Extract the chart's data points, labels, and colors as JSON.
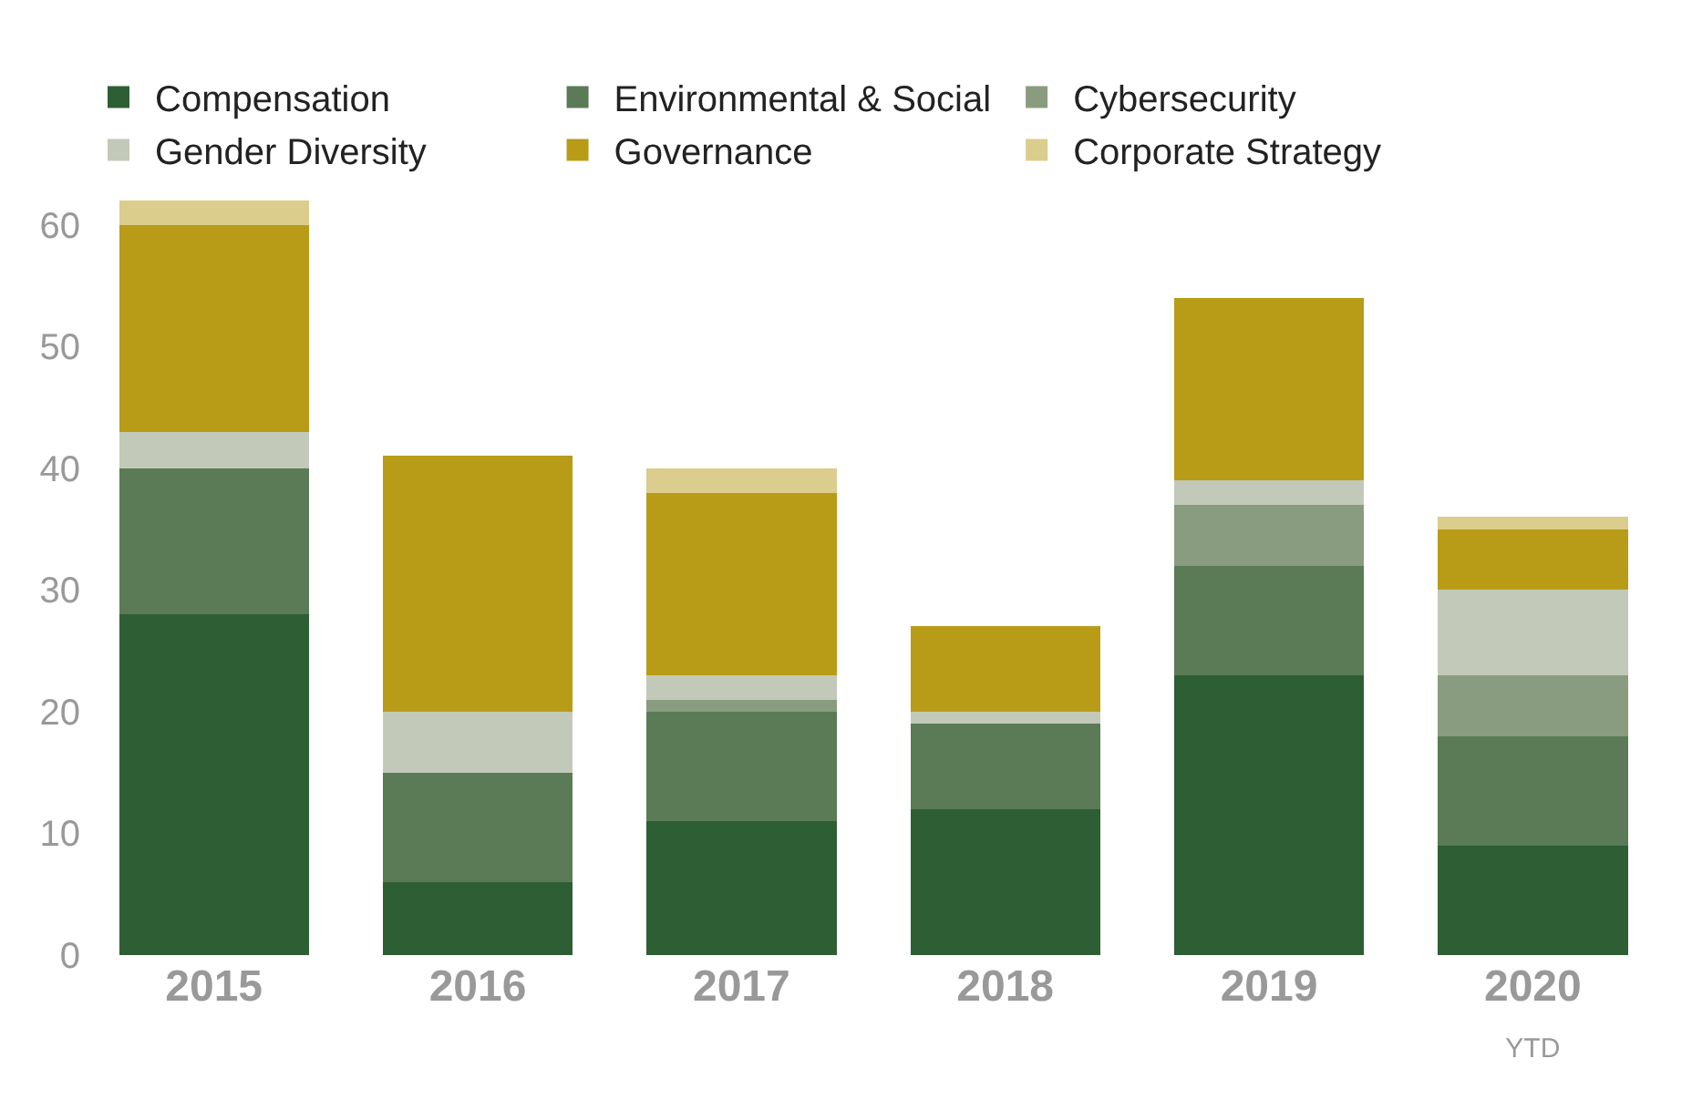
{
  "chart_data": {
    "type": "bar",
    "stacked": true,
    "categories": [
      "2015",
      "2016",
      "2017",
      "2018",
      "2019",
      "2020\nYTD"
    ],
    "series": [
      {
        "name": "Compensation",
        "color": "#2e5e33",
        "values": [
          28,
          6,
          11,
          12,
          23,
          9
        ]
      },
      {
        "name": "Environmental & Social",
        "color": "#5a7b56",
        "values": [
          12,
          9,
          9,
          7,
          9,
          9
        ]
      },
      {
        "name": "Cybersecurity",
        "color": "#899c7f",
        "values": [
          0,
          0,
          1,
          0,
          5,
          5
        ]
      },
      {
        "name": "Gender Diversity",
        "color": "#c2c9b8",
        "values": [
          3,
          5,
          2,
          1,
          2,
          7
        ]
      },
      {
        "name": "Governance",
        "color": "#b89c18",
        "values": [
          17,
          21,
          15,
          7,
          15,
          5
        ]
      },
      {
        "name": "Corporate Strategy",
        "color": "#dbcd8b",
        "values": [
          2,
          0,
          2,
          0,
          0,
          1
        ]
      }
    ],
    "ylim": [
      0,
      62
    ],
    "yticks": [
      0,
      10,
      20,
      30,
      40,
      50,
      60
    ],
    "legend": "top"
  }
}
